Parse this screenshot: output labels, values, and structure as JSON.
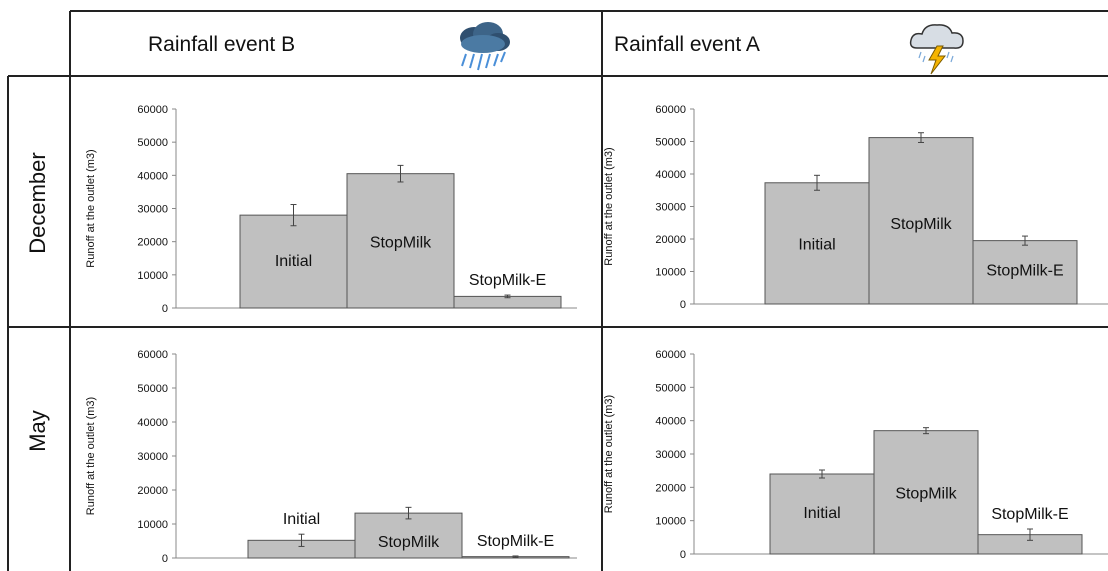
{
  "header": {
    "col_b": "Rainfall event B",
    "col_a": "Rainfall event A",
    "row_dec": "December",
    "row_may": "May"
  },
  "icons": {
    "col_b": "rain-cloud-icon",
    "col_a": "thunderstorm-cloud-icon"
  },
  "colors": {
    "bar_fill": "#c0c0c0",
    "bar_stroke": "#555555",
    "rain": "#4a8fd8",
    "lightning": "#f5b400",
    "cloud": "#d7dde4"
  },
  "chart_data": [
    {
      "type": "bar",
      "panel": "December / Rainfall event B",
      "categories": [
        "Initial",
        "StopMilk",
        "StopMilk-E"
      ],
      "values": [
        28000,
        40500,
        3500
      ],
      "errors": [
        3200,
        2500,
        400
      ],
      "ylabel": "Runoff at the outlet (m3)",
      "ylim": [
        0,
        60000
      ],
      "yticks": [
        "0",
        "10000",
        "20000",
        "30000",
        "40000",
        "50000",
        "60000"
      ],
      "bar_labels": [
        "Initial",
        "StopMilk",
        "StopMilk-E"
      ],
      "label_placement": [
        "inside",
        "inside",
        "above"
      ]
    },
    {
      "type": "bar",
      "panel": "December / Rainfall event A",
      "categories": [
        "Initial",
        "StopMilk",
        "StopMilk-E"
      ],
      "values": [
        37300,
        51200,
        19500
      ],
      "errors": [
        2300,
        1500,
        1400
      ],
      "ylabel": "Runoff at the outlet (m3)",
      "ylim": [
        0,
        60000
      ],
      "yticks": [
        "0",
        "10000",
        "20000",
        "30000",
        "40000",
        "50000",
        "60000"
      ],
      "bar_labels": [
        "Initial",
        "StopMilk",
        "StopMilk-E"
      ],
      "label_placement": [
        "inside",
        "inside",
        "inside"
      ]
    },
    {
      "type": "bar",
      "panel": "May / Rainfall event B",
      "categories": [
        "Initial",
        "StopMilk",
        "StopMilk-E"
      ],
      "values": [
        5200,
        13200,
        400
      ],
      "errors": [
        1800,
        1700,
        200
      ],
      "ylabel": "Runoff at the outlet (m3)",
      "ylim": [
        0,
        60000
      ],
      "yticks": [
        "0",
        "10000",
        "20000",
        "30000",
        "40000",
        "50000",
        "60000"
      ],
      "bar_labels": [
        "Initial",
        "StopMilk",
        "StopMilk-E"
      ],
      "label_placement": [
        "above",
        "inside",
        "above"
      ]
    },
    {
      "type": "bar",
      "panel": "May / Rainfall event A",
      "categories": [
        "Initial",
        "StopMilk",
        "StopMilk-E"
      ],
      "values": [
        24000,
        37000,
        5800
      ],
      "errors": [
        1200,
        900,
        1700
      ],
      "ylabel": "Runoff at the outlet (m3)",
      "ylim": [
        0,
        60000
      ],
      "yticks": [
        "0",
        "10000",
        "20000",
        "30000",
        "40000",
        "50000",
        "60000"
      ],
      "bar_labels": [
        "Initial",
        "StopMilk",
        "StopMilk-E"
      ],
      "label_placement": [
        "inside",
        "inside",
        "above"
      ]
    }
  ]
}
